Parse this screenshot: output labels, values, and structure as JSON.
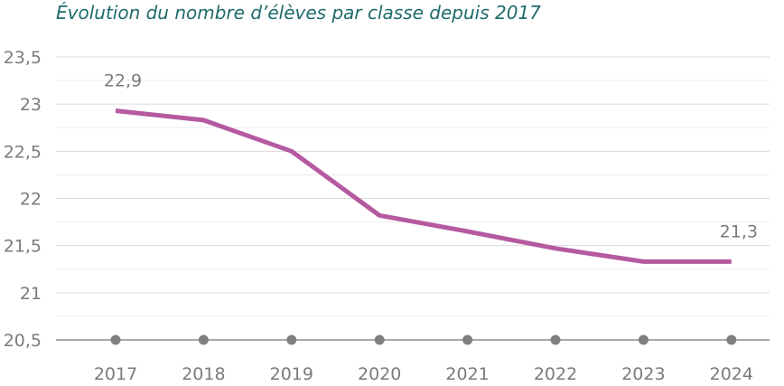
{
  "chart_data": {
    "type": "line",
    "title": "Évolution du nombre d’élèves par classe depuis 2017",
    "xlabel": "",
    "ylabel": "",
    "categories": [
      "2017",
      "2018",
      "2019",
      "2020",
      "2021",
      "2022",
      "2023",
      "2024"
    ],
    "series": [
      {
        "values": [
          22.93,
          22.83,
          22.5,
          21.82,
          21.65,
          21.47,
          21.33,
          21.33
        ],
        "color": "#b55aa0"
      }
    ],
    "ylim": [
      20.5,
      23.5
    ],
    "yticks": [
      20.5,
      21,
      21.5,
      22,
      22.5,
      23,
      23.5
    ],
    "ytick_labels": [
      "20,5",
      "21",
      "21,5",
      "22",
      "22,5",
      "23",
      "23,5"
    ],
    "data_labels": [
      {
        "index": 0,
        "text": "22,9"
      },
      {
        "index": 7,
        "text": "21,3"
      }
    ],
    "grid": true,
    "legend": "none",
    "colors": {
      "line": "#b55aa0",
      "grid": "#d9d9d9",
      "axis": "#8c8c8c",
      "marker": "#7f7f7f",
      "title": "#1f6b6b",
      "text": "#7b7b7b"
    }
  }
}
